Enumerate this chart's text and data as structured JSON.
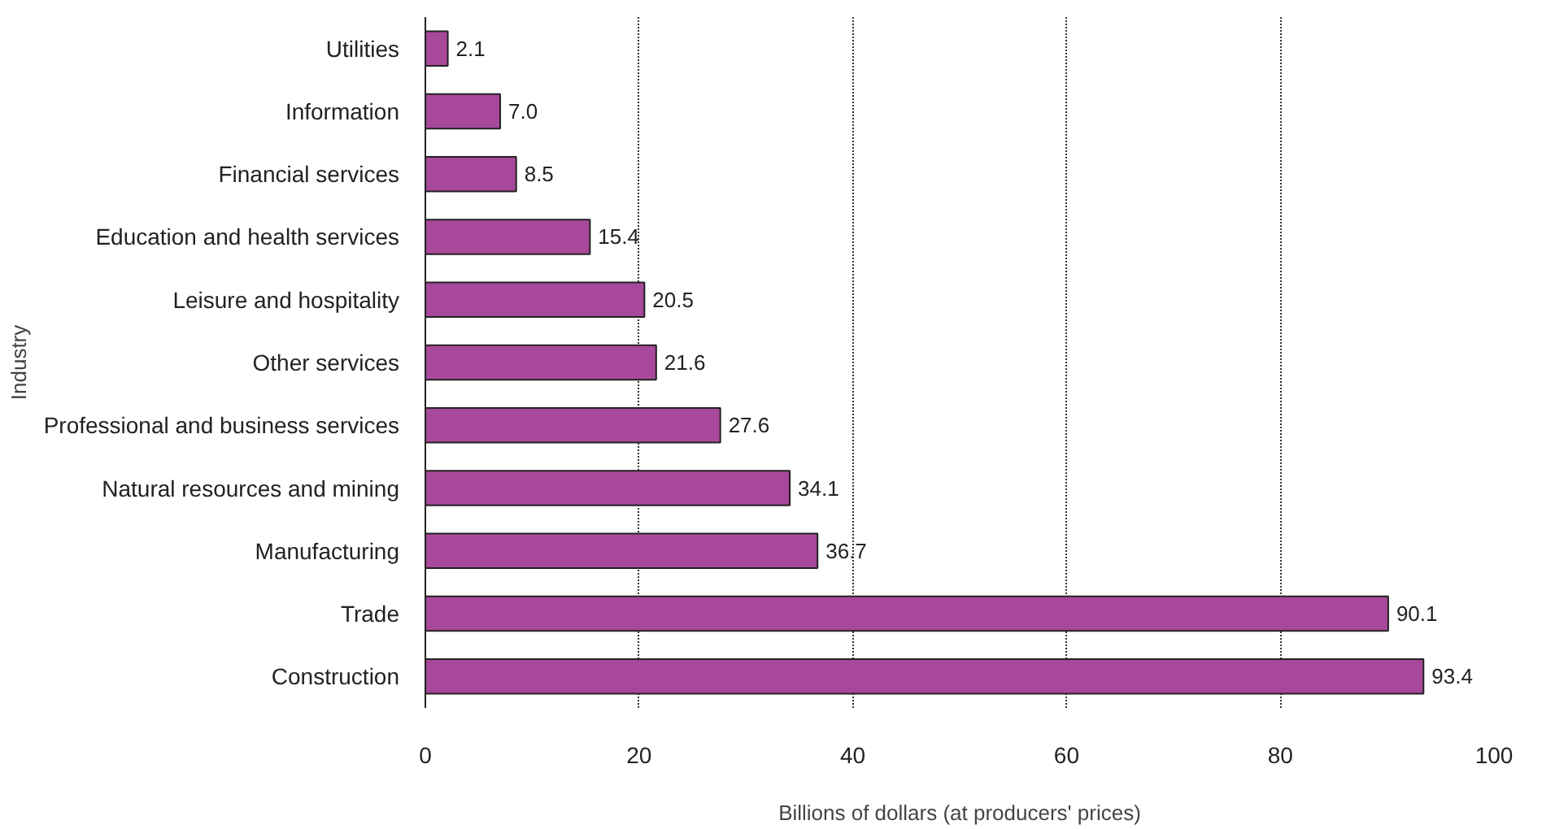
{
  "chart_data": {
    "type": "bar",
    "orientation": "horizontal",
    "xlabel": "Billions of dollars (at producers' prices)",
    "ylabel": "Industry",
    "categories": [
      "Utilities",
      "Information",
      "Financial services",
      "Education and health services",
      "Leisure and hospitality",
      "Other services",
      "Professional and business services",
      "Natural resources and mining",
      "Manufacturing",
      "Trade",
      "Construction"
    ],
    "values": [
      2.1,
      7.0,
      8.5,
      15.4,
      20.5,
      21.6,
      27.6,
      34.1,
      36.7,
      90.1,
      93.4
    ],
    "color": "#a8489a",
    "xlim": [
      0,
      100
    ],
    "xticks": [
      0,
      20,
      40,
      60,
      80,
      100
    ],
    "value_labels": [
      "2.1",
      "7.0",
      "8.5",
      "15.4",
      "20.5",
      "21.6",
      "27.6",
      "34.1",
      "36.7",
      "90.1",
      "93.4"
    ],
    "grid": "x"
  }
}
